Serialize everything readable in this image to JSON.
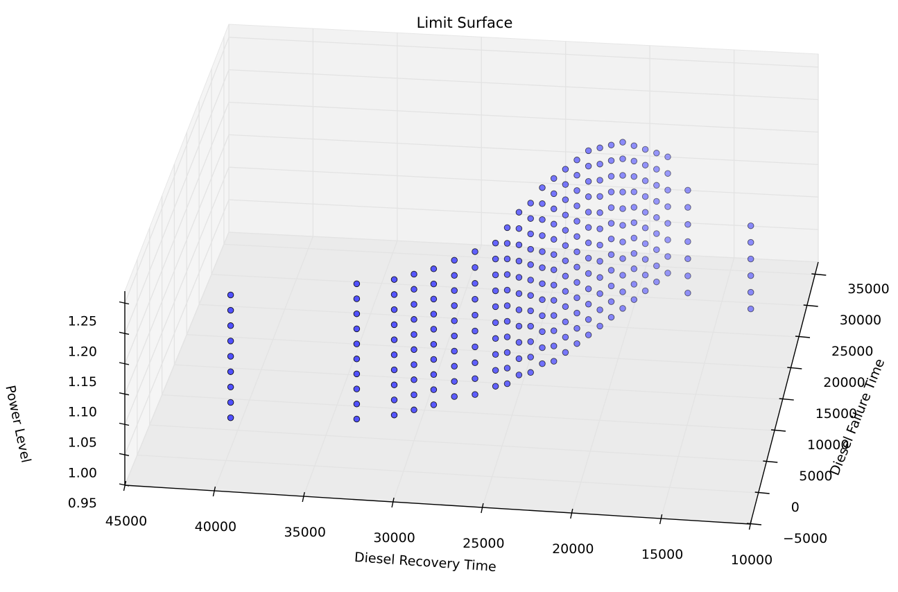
{
  "chart_data": {
    "type": "scatter3d",
    "title": "Limit Surface",
    "xlabel": "Diesel Recovery Time",
    "ylabel": "Diesel Failure Time",
    "zlabel": "Power Level",
    "xlim": [
      10000,
      45000
    ],
    "ylim": [
      -5000,
      37000
    ],
    "zlim": [
      0.95,
      1.27
    ],
    "x_ticks": [
      "45000",
      "40000",
      "35000",
      "30000",
      "25000",
      "20000",
      "15000",
      "10000"
    ],
    "y_ticks": [
      "−5000",
      "0",
      "5000",
      "10000",
      "15000",
      "20000",
      "25000",
      "30000",
      "35000"
    ],
    "z_ticks": [
      "0.95",
      "1.00",
      "1.05",
      "1.10",
      "1.15",
      "1.20",
      "1.25"
    ],
    "grid": true,
    "colors": {
      "marker_fill": "#4040ff",
      "marker_edge": "#000000",
      "pane": "#f2f2f2",
      "grid": "#e3e3e3"
    },
    "series": [
      {
        "columns": [
          {
            "x": 40000,
            "y": 2000,
            "z0": 1.0,
            "z1": 1.2
          },
          {
            "x": 33000,
            "y": 3000,
            "z0": 1.0,
            "z1": 1.22
          },
          {
            "x": 31000,
            "y": 4000,
            "z0": 1.0,
            "z1": 1.22
          },
          {
            "x": 30000,
            "y": 5000,
            "z0": 1.0,
            "z1": 1.22
          },
          {
            "x": 29000,
            "y": 6000,
            "z0": 1.0,
            "z1": 1.22
          },
          {
            "x": 28000,
            "y": 7500,
            "z0": 1.0,
            "z1": 1.22
          },
          {
            "x": 27000,
            "y": 9000,
            "z0": 0.99,
            "z1": 1.22
          },
          {
            "x": 26000,
            "y": 10500,
            "z0": 0.99,
            "z1": 1.22
          },
          {
            "x": 25500,
            "y": 12000,
            "z0": 0.98,
            "z1": 1.23
          },
          {
            "x": 25000,
            "y": 13500,
            "z0": 0.98,
            "z1": 1.24
          },
          {
            "x": 24500,
            "y": 15000,
            "z0": 0.97,
            "z1": 1.24
          },
          {
            "x": 24000,
            "y": 16500,
            "z0": 0.97,
            "z1": 1.25
          },
          {
            "x": 23500,
            "y": 18000,
            "z0": 0.96,
            "z1": 1.25
          },
          {
            "x": 23000,
            "y": 19500,
            "z0": 0.96,
            "z1": 1.25
          },
          {
            "x": 22500,
            "y": 21000,
            "z0": 0.96,
            "z1": 1.25
          },
          {
            "x": 22000,
            "y": 22500,
            "z0": 0.96,
            "z1": 1.25
          },
          {
            "x": 21500,
            "y": 24000,
            "z0": 0.96,
            "z1": 1.24
          },
          {
            "x": 21000,
            "y": 25500,
            "z0": 0.96,
            "z1": 1.23
          },
          {
            "x": 20500,
            "y": 27000,
            "z0": 0.96,
            "z1": 1.22
          },
          {
            "x": 20000,
            "y": 28500,
            "z0": 0.96,
            "z1": 1.2
          },
          {
            "x": 19500,
            "y": 30000,
            "z0": 0.96,
            "z1": 1.18
          },
          {
            "x": 19000,
            "y": 31500,
            "z0": 0.96,
            "z1": 1.16
          },
          {
            "x": 18500,
            "y": 33000,
            "z0": 0.96,
            "z1": 1.14
          },
          {
            "x": 17000,
            "y": 30000,
            "z0": 0.96,
            "z1": 1.12
          },
          {
            "x": 13000,
            "y": 27000,
            "z0": 0.97,
            "z1": 1.1
          }
        ]
      }
    ]
  }
}
